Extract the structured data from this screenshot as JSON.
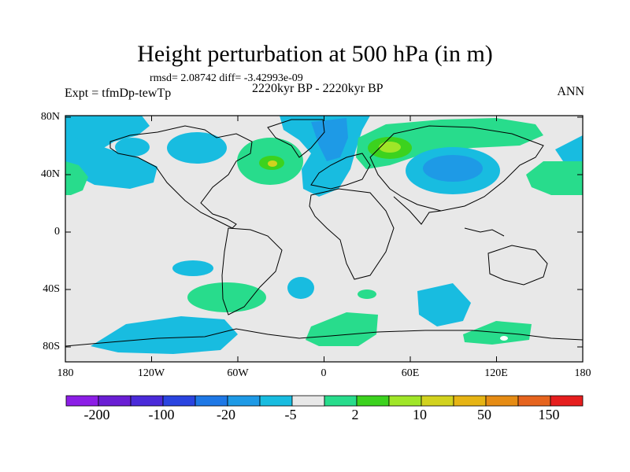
{
  "title": "Height perturbation at 500 hPa (in m)",
  "stats": "rmsd= 2.08742 diff= -3.42993e-09",
  "subtitle": "2220kyr BP - 2220kyr BP",
  "expt": "Expt = tfmDp-tewTp",
  "season": "ANN",
  "lat_labels": [
    "80N",
    "40N",
    "0",
    "40S",
    "80S"
  ],
  "lon_labels": [
    "180",
    "120W",
    "60W",
    "0",
    "60E",
    "120E",
    "180"
  ],
  "colorbar": {
    "colors": [
      "#8c1ee6",
      "#6a1ed4",
      "#4a2ad9",
      "#2a44e0",
      "#1e78e6",
      "#1e9ae6",
      "#18bce0",
      "#e8e8e8",
      "#28dc8c",
      "#3cd21e",
      "#a0e628",
      "#d2d21e",
      "#e6b414",
      "#e68c14",
      "#e6641e",
      "#e61e1e"
    ],
    "labels": [
      "-200",
      "-100",
      "-20",
      "-5",
      "2",
      "10",
      "50",
      "150"
    ]
  },
  "map": {
    "background": "#e8e8e8",
    "colors": {
      "neg_light": "#18bce0",
      "neg_mid": "#1e9ae6",
      "pos_light": "#28dc8c",
      "pos_mid": "#3cd21e",
      "pos_high": "#a0e628",
      "pos_peak": "#d2d21e",
      "white": "#ffffff"
    }
  }
}
